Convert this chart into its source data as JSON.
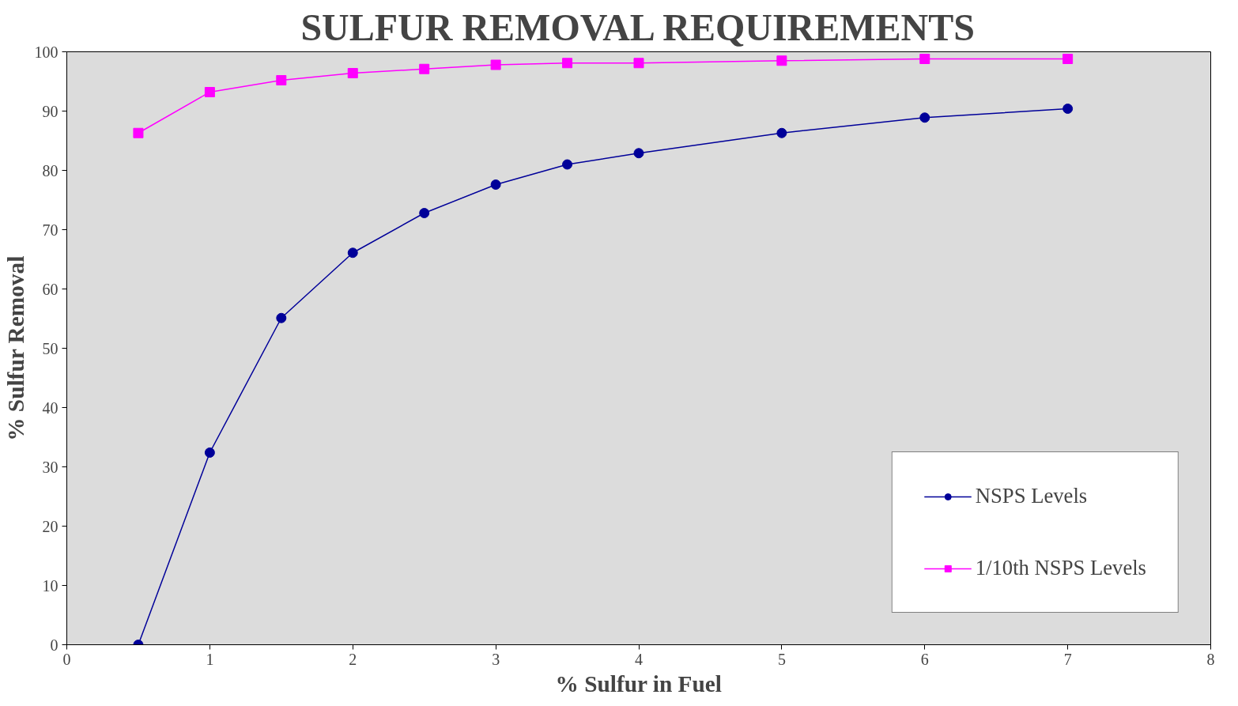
{
  "chart_data": {
    "type": "line",
    "title": "SULFUR REMOVAL REQUIREMENTS",
    "xlabel": "% Sulfur in Fuel",
    "ylabel": "% Sulfur Removal",
    "x": [
      0.5,
      1,
      1.5,
      2,
      2.5,
      3,
      3.5,
      4,
      5,
      6,
      7
    ],
    "series": [
      {
        "name": "NSPS Levels",
        "color": "#000099",
        "marker": "circle",
        "values": [
          0,
          32.4,
          55.1,
          66.1,
          72.8,
          77.6,
          81.0,
          82.9,
          86.3,
          88.9,
          90.4
        ]
      },
      {
        "name": "1/10th NSPS Levels",
        "color": "#ff00ff",
        "marker": "square",
        "values": [
          86.3,
          93.2,
          95.2,
          96.4,
          97.1,
          97.8,
          98.1,
          98.1,
          98.5,
          98.8,
          98.8
        ]
      }
    ],
    "xlim": [
      0,
      8
    ],
    "xticks": [
      0,
      1,
      2,
      3,
      4,
      5,
      6,
      7,
      8
    ],
    "ylim": [
      0,
      100
    ],
    "yticks": [
      0,
      10,
      20,
      30,
      40,
      50,
      60,
      70,
      80,
      90,
      100
    ],
    "grid": false,
    "legend": "bottom right",
    "line_style": "solid"
  }
}
